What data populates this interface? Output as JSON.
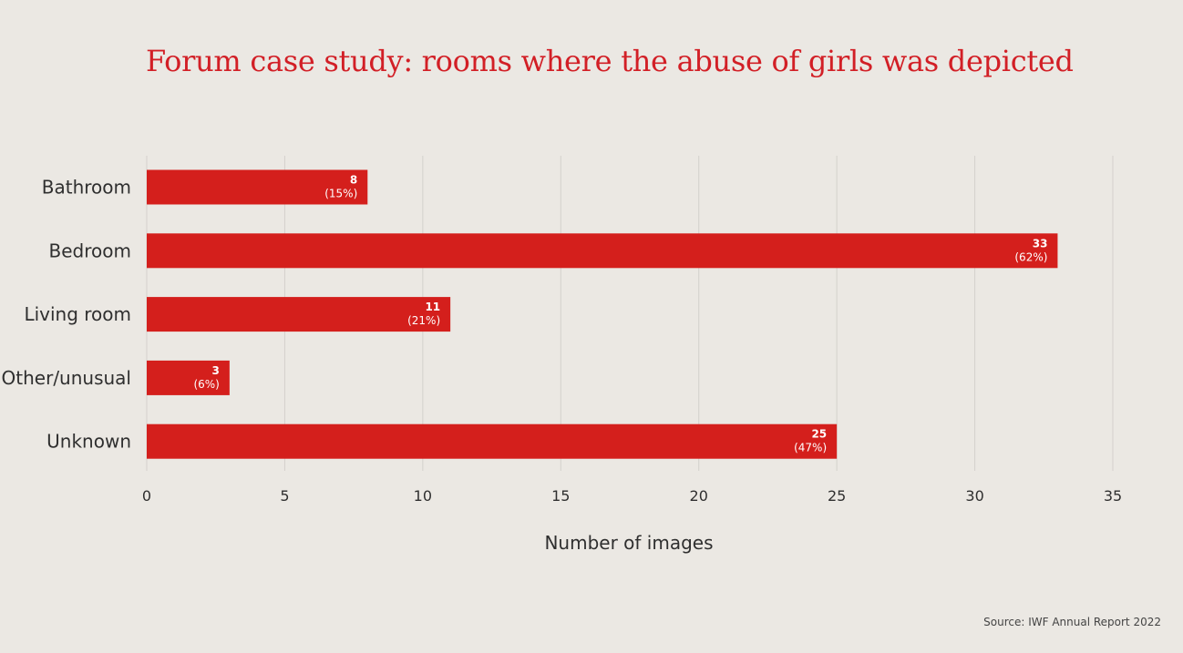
{
  "chart_data": {
    "type": "bar",
    "orientation": "horizontal",
    "title": "Forum case study: rooms where the abuse of girls was depicted",
    "categories": [
      "Bathroom",
      "Bedroom",
      "Living room",
      "Other/unusual",
      "Unknown"
    ],
    "values": [
      8,
      33,
      11,
      3,
      25
    ],
    "value_labels": [
      "8",
      "33",
      "11",
      "3",
      "25"
    ],
    "percent_labels": [
      "(15%)",
      "(62%)",
      "(21%)",
      "(6%)",
      "(47%)"
    ],
    "xlabel": "Number of images",
    "ylabel": "",
    "xlim": [
      0,
      35
    ],
    "xticks": [
      "0",
      "5",
      "10",
      "15",
      "20",
      "25",
      "30",
      "35"
    ],
    "grid": true,
    "colors": {
      "bar": "#d41f1c",
      "title": "#d21f26",
      "grid": "#d4d1cc",
      "background": "#ebe8e3",
      "text": "#2f2f2f"
    }
  },
  "source": "Source: IWF Annual Report 2022"
}
